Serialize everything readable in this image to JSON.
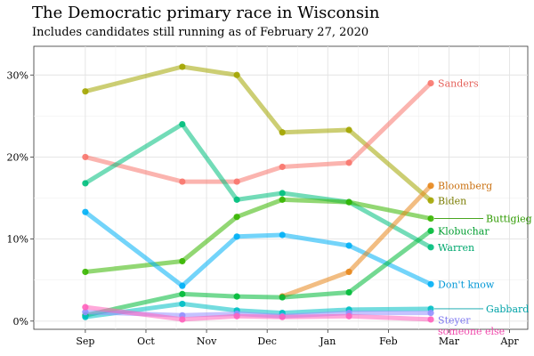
{
  "chart_data": {
    "type": "line",
    "title": "The Democratic primary race in Wisconsin",
    "subtitle": "Includes candidates still running as of February 27, 2020",
    "xlabel": "",
    "ylabel": "",
    "x_ticks": [
      "Sep",
      "Oct",
      "Nov",
      "Dec",
      "Jan",
      "Feb",
      "Mar",
      "Apr"
    ],
    "x_tick_pos": [
      0,
      1,
      2,
      3,
      4,
      5,
      6,
      7
    ],
    "xlim": [
      -0.85,
      7.3
    ],
    "y_ticks": [
      "0%",
      "10%",
      "20%",
      "30%"
    ],
    "y_tick_vals": [
      0,
      10,
      20,
      30
    ],
    "ylim": [
      -1,
      33.5
    ],
    "grid": true,
    "legend": "direct labels at right end of lines",
    "series": [
      {
        "name": "Biden",
        "color": "#A3A500",
        "label_color": "#7A7C00",
        "x": [
          0,
          1.6,
          2.5,
          3.25,
          4.35,
          5.7
        ],
        "values": [
          28,
          31,
          30,
          23,
          23.3,
          14.7
        ]
      },
      {
        "name": "Sanders",
        "color": "#F8766D",
        "label_color": "#E5625B",
        "x": [
          0,
          1.6,
          2.5,
          3.25,
          4.35,
          5.7
        ],
        "values": [
          20,
          17,
          17,
          18.8,
          19.3,
          29
        ]
      },
      {
        "name": "Warren",
        "color": "#00BF7D",
        "label_color": "#00A86E",
        "x": [
          0,
          1.6,
          2.5,
          3.25,
          4.35,
          5.7
        ],
        "values": [
          16.8,
          24,
          14.8,
          15.6,
          14.5,
          9
        ]
      },
      {
        "name": "Buttigieg",
        "color": "#39B600",
        "label_color": "#2E9A00",
        "x": [
          0,
          1.6,
          2.5,
          3.25,
          4.35,
          5.7
        ],
        "values": [
          6,
          7.3,
          12.7,
          14.8,
          14.5,
          12.5
        ]
      },
      {
        "name": "Don't know",
        "color": "#00B0F6",
        "label_color": "#0097D6",
        "x": [
          0,
          1.6,
          2.5,
          3.25,
          4.35,
          5.7
        ],
        "values": [
          13.3,
          4.3,
          10.3,
          10.5,
          9.2,
          4.5
        ]
      },
      {
        "name": "Bloomberg",
        "color": "#E7861B",
        "label_color": "#C96F0E",
        "x": [
          3.25,
          4.35,
          5.7
        ],
        "values": [
          3,
          6,
          16.5
        ]
      },
      {
        "name": "Klobuchar",
        "color": "#00BA38",
        "label_color": "#009E2F",
        "x": [
          0,
          1.6,
          2.5,
          3.25,
          4.35,
          5.7
        ],
        "values": [
          0.7,
          3.3,
          3,
          2.9,
          3.5,
          11
        ]
      },
      {
        "name": "Gabbard",
        "color": "#00BFC4",
        "label_color": "#00A3A8",
        "x": [
          0,
          1.6,
          2.5,
          3.25,
          4.35,
          5.7
        ],
        "values": [
          0.5,
          2.1,
          1.3,
          1,
          1.4,
          1.5
        ]
      },
      {
        "name": "Steyer",
        "color": "#9590FF",
        "label_color": "#7D77F0",
        "x": [
          0,
          1.6,
          2.5,
          3.25,
          4.35,
          5.7
        ],
        "values": [
          1.1,
          0.7,
          0.9,
          0.6,
          1,
          1
        ]
      },
      {
        "name": "someone else",
        "color": "#FF62BC",
        "label_color": "#F04AAC",
        "x": [
          0,
          1.6,
          2.5,
          3.25,
          4.35,
          5.7
        ],
        "values": [
          1.7,
          0.2,
          0.6,
          0.5,
          0.6,
          0.2
        ]
      }
    ],
    "labels": [
      {
        "name": "Sanders",
        "value": 29,
        "leader": false
      },
      {
        "name": "Bloomberg",
        "value": 16.5,
        "leader": false
      },
      {
        "name": "Biden",
        "value": 14.7,
        "leader": false
      },
      {
        "name": "Buttigieg",
        "value": 12.5,
        "leader": true
      },
      {
        "name": "Klobuchar",
        "value": 11,
        "leader": false
      },
      {
        "name": "Warren",
        "value": 9,
        "leader": false
      },
      {
        "name": "Don't know",
        "value": 4.5,
        "leader": false
      },
      {
        "name": "Gabbard",
        "value": 1.5,
        "leader": true
      },
      {
        "name": "Steyer",
        "value": 1,
        "leader": false
      },
      {
        "name": "someone else",
        "value": 0.2,
        "leader": false
      }
    ]
  }
}
